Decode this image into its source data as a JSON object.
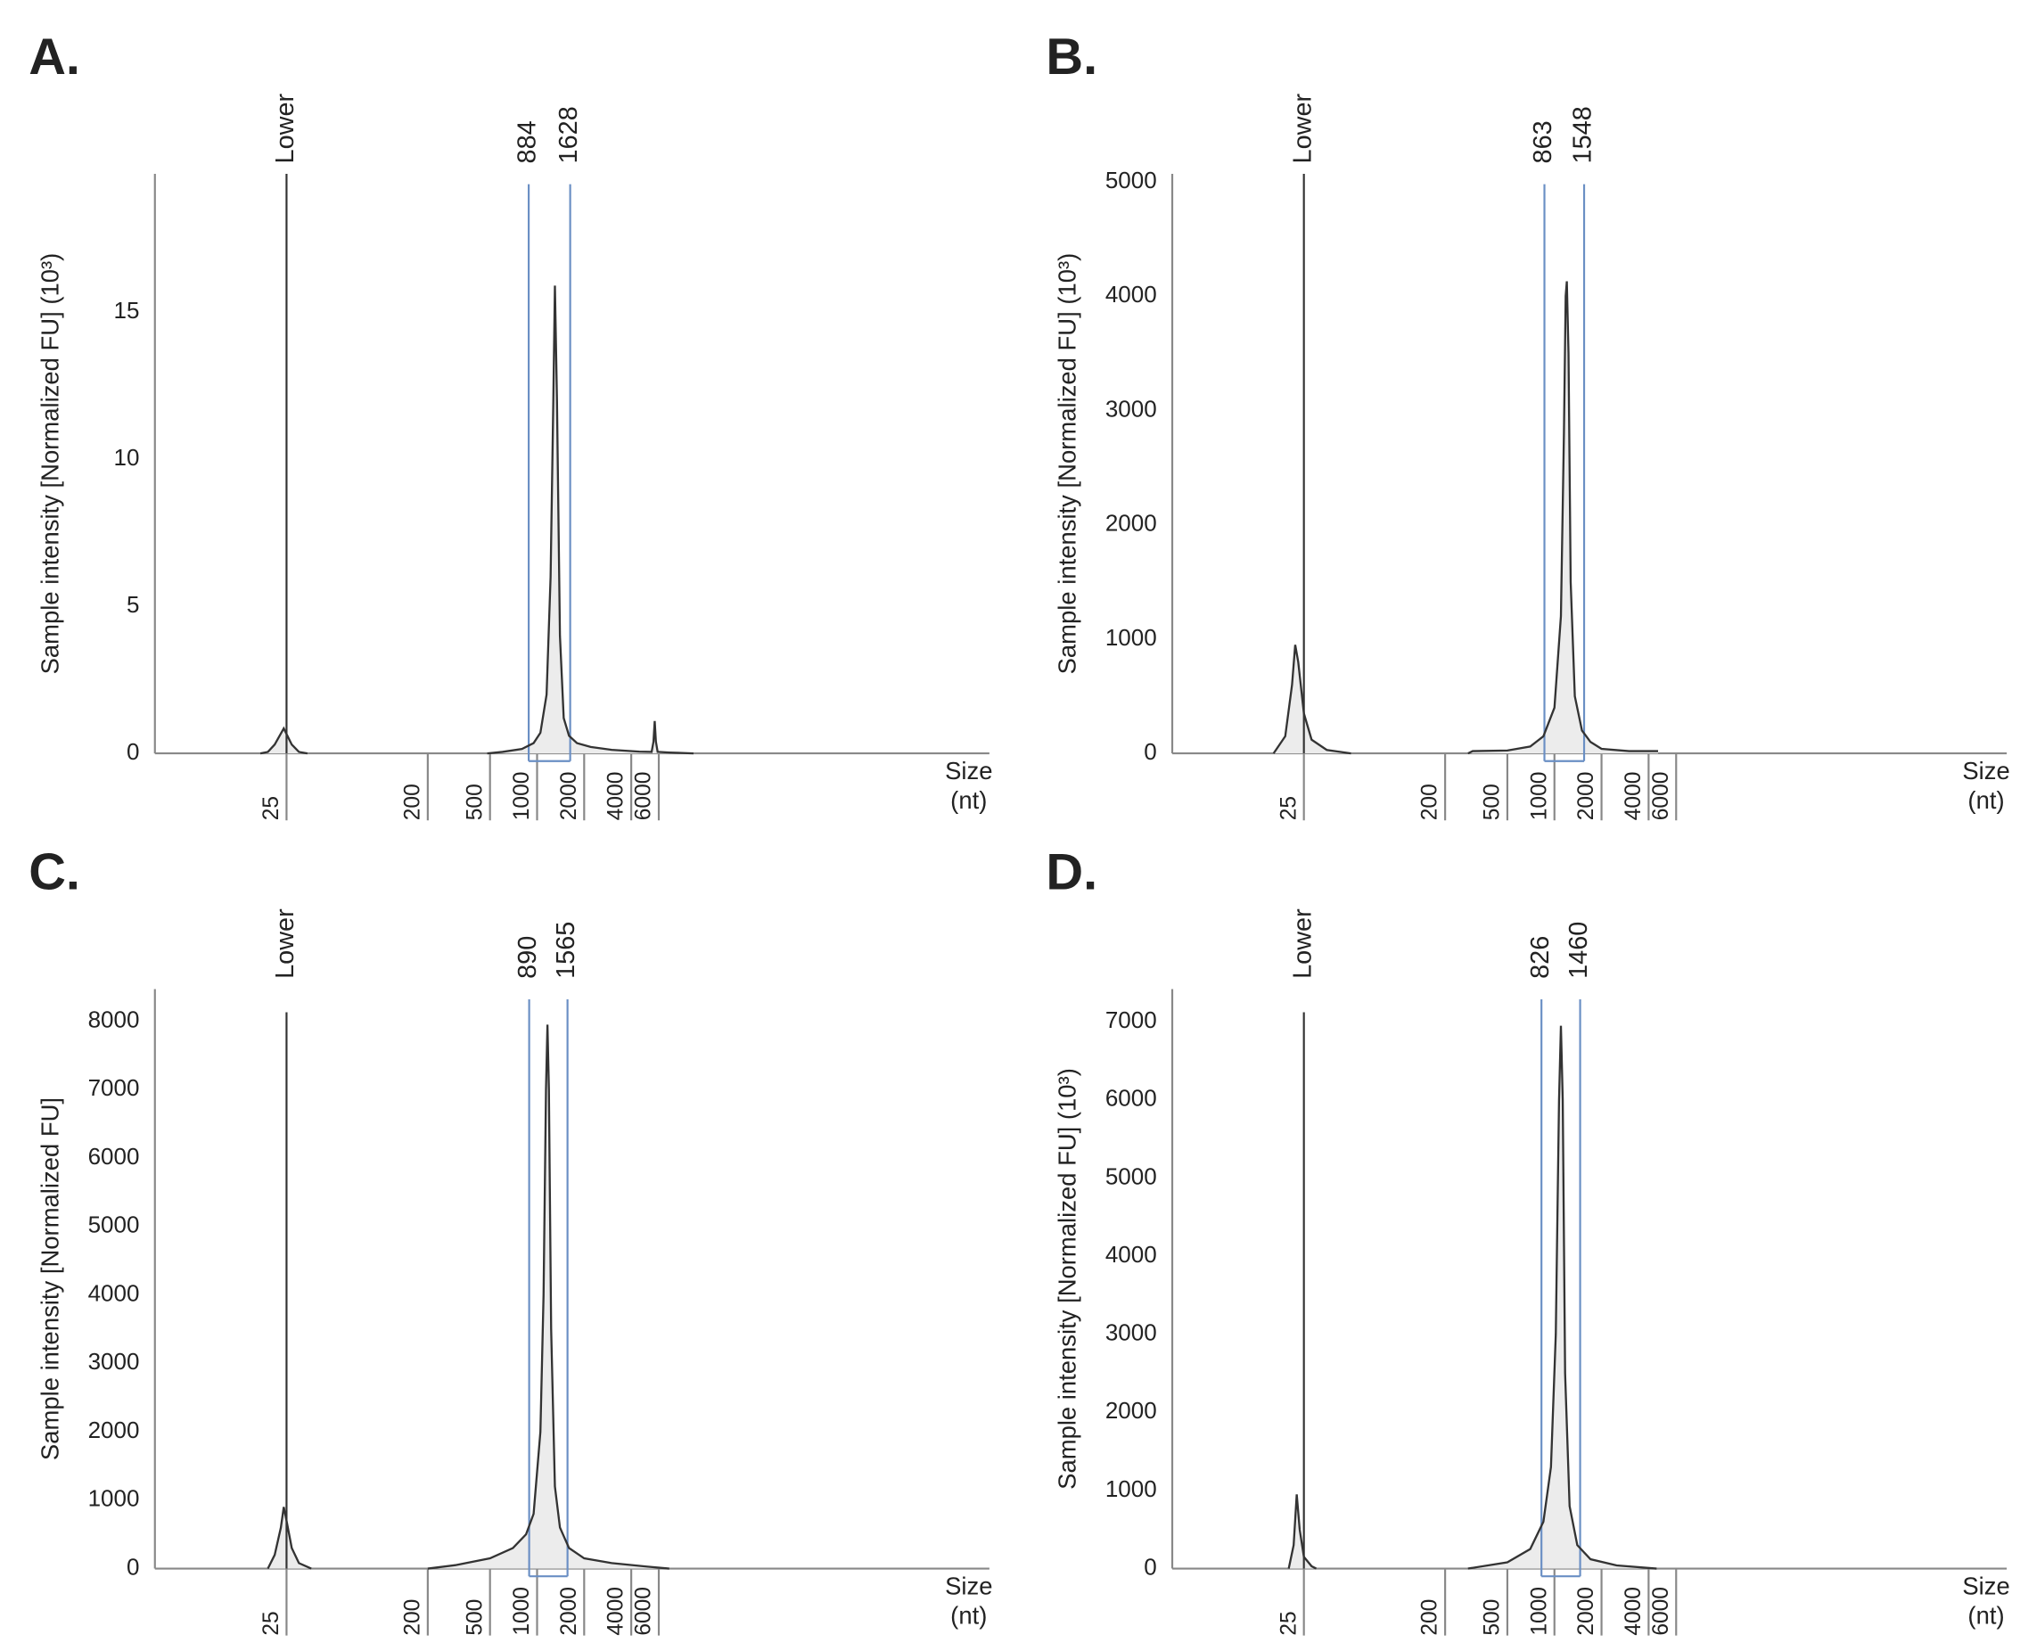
{
  "chart_data": [
    {
      "type": "trace",
      "panel": "A.",
      "ylabel": "Sample intensity [Normalized FU] (10³)",
      "xlabel": [
        "Size",
        "(nt)"
      ],
      "lower_marker": "Lower",
      "region": [
        884,
        1628
      ],
      "xscale": "log",
      "xlim": [
        3.6,
        780000
      ],
      "xticks": [
        25,
        200,
        500,
        1000,
        2000,
        4000,
        6000
      ],
      "ylim": [
        0,
        19.7
      ],
      "yticks": [
        0,
        5,
        10,
        15
      ],
      "grid": false,
      "color": "#333333",
      "fill": "#ececec",
      "region_color": "#6a8fc4",
      "x": [
        17,
        19,
        21,
        24,
        27,
        30,
        34,
        null,
        480,
        600,
        800,
        950,
        1050,
        1150,
        1220,
        1270,
        1300,
        1340,
        1400,
        1480,
        1600,
        1800,
        2200,
        3000,
        4500,
        5400,
        5550,
        5650,
        5750,
        5900,
        7000,
        10000
      ],
      "values": [
        0,
        0.05,
        0.3,
        0.85,
        0.3,
        0.05,
        0,
        null,
        0,
        0.05,
        0.15,
        0.35,
        0.7,
        2,
        6,
        12,
        15.9,
        12,
        4,
        1.2,
        0.6,
        0.35,
        0.22,
        0.12,
        0.06,
        0.05,
        0.4,
        1.1,
        0.4,
        0.05,
        0.03,
        0
      ]
    },
    {
      "type": "trace",
      "panel": "B.",
      "ylabel": "Sample intensity [Normalized FU] (10³)",
      "xlabel": [
        "Size",
        "(nt)"
      ],
      "lower_marker": "Lower",
      "region": [
        863,
        1548
      ],
      "xscale": "log",
      "xlim": [
        3.6,
        780000
      ],
      "xticks": [
        25,
        200,
        500,
        1000,
        2000,
        4000,
        6000
      ],
      "ylim": [
        0,
        5070
      ],
      "yticks": [
        0,
        1000,
        2000,
        3000,
        4000,
        5000
      ],
      "grid": false,
      "color": "#333333",
      "fill": "#ececec",
      "region_color": "#6a8fc4",
      "x": [
        16,
        19,
        21,
        22,
        23,
        25,
        28,
        35,
        50,
        null,
        280,
        300,
        500,
        700,
        850,
        1000,
        1100,
        1150,
        1180,
        1200,
        1230,
        1270,
        1350,
        1500,
        1700,
        2000,
        3000,
        4600
      ],
      "values": [
        0,
        150,
        600,
        950,
        800,
        350,
        120,
        30,
        0,
        null,
        0,
        20,
        25,
        60,
        150,
        400,
        1200,
        2800,
        4000,
        4130,
        3500,
        1500,
        500,
        200,
        100,
        40,
        20,
        20
      ]
    },
    {
      "type": "trace",
      "panel": "C.",
      "ylabel": "Sample intensity [Normalized FU]",
      "xlabel": [
        "Size",
        "(nt)"
      ],
      "lower_marker": "Lower",
      "region": [
        890,
        1565
      ],
      "xscale": "log",
      "xlim": [
        3.6,
        780000
      ],
      "xticks": [
        25,
        200,
        500,
        1000,
        2000,
        4000,
        6000
      ],
      "ylim": [
        0,
        8470
      ],
      "yticks": [
        0,
        1000,
        2000,
        3000,
        4000,
        5000,
        6000,
        7000,
        8000
      ],
      "grid": false,
      "color": "#333333",
      "fill": "#ececec",
      "region_color": "#6a8fc4",
      "x": [
        19,
        21,
        23,
        24,
        25,
        27,
        30,
        36,
        null,
        200,
        300,
        500,
        700,
        850,
        950,
        1050,
        1100,
        1140,
        1165,
        1190,
        1230,
        1300,
        1400,
        1600,
        2000,
        3000,
        5000,
        7000
      ],
      "values": [
        0,
        200,
        600,
        900,
        700,
        300,
        80,
        0,
        null,
        0,
        50,
        150,
        300,
        500,
        800,
        2000,
        4000,
        7000,
        7950,
        7000,
        3500,
        1200,
        600,
        300,
        150,
        80,
        30,
        0
      ]
    },
    {
      "type": "trace",
      "panel": "D.",
      "ylabel": "Sample intensity [Normalized FU] (10³)",
      "xlabel": [
        "Size",
        "(nt)"
      ],
      "lower_marker": "Lower",
      "region": [
        826,
        1460
      ],
      "xscale": "log",
      "xlim": [
        3.6,
        780000
      ],
      "xticks": [
        25,
        200,
        500,
        1000,
        2000,
        4000,
        6000
      ],
      "ylim": [
        0,
        7420
      ],
      "yticks": [
        0,
        1000,
        2000,
        3000,
        4000,
        5000,
        6000,
        7000
      ],
      "grid": false,
      "color": "#333333",
      "fill": "#ececec",
      "region_color": "#6a8fc4",
      "x": [
        20,
        21.5,
        22.5,
        23.5,
        25,
        28,
        30,
        null,
        280,
        500,
        700,
        850,
        950,
        1020,
        1070,
        1100,
        1130,
        1170,
        1250,
        1400,
        1700,
        2500,
        4500
      ],
      "values": [
        0,
        300,
        950,
        500,
        150,
        30,
        0,
        null,
        0,
        80,
        250,
        600,
        1300,
        3000,
        6000,
        6950,
        6000,
        2500,
        800,
        300,
        120,
        40,
        0
      ]
    }
  ]
}
